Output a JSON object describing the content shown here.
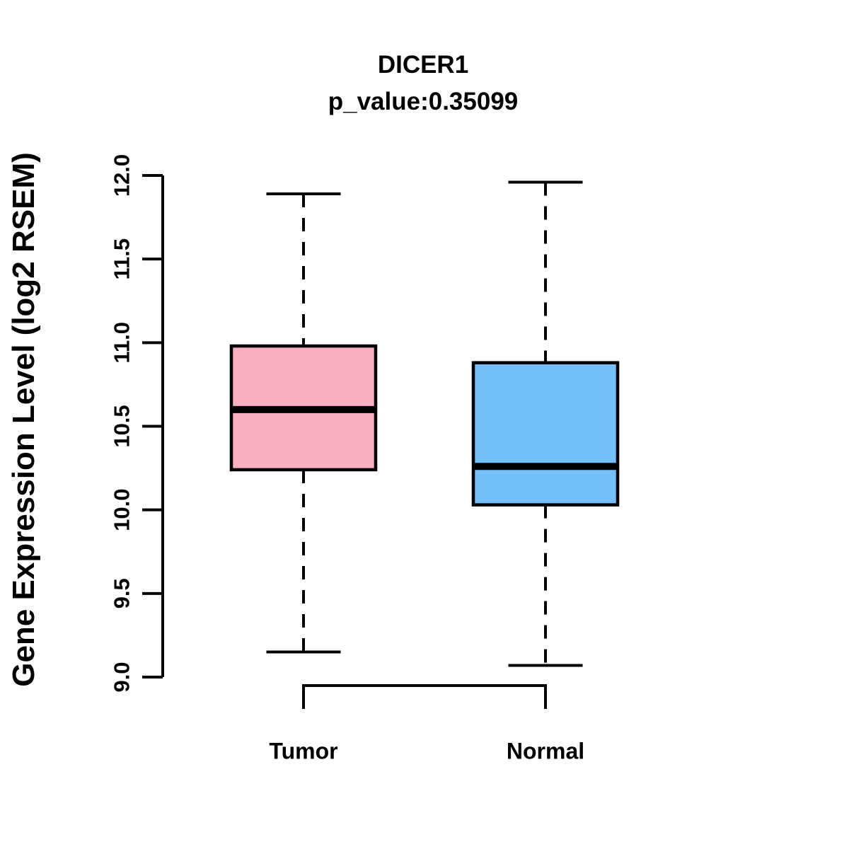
{
  "chart_data": {
    "type": "boxplot",
    "title": "DICER1",
    "subtitle": "p_value:0.35099",
    "ylabel": "Gene Expression Level (log2 RSEM)",
    "xlabel": "",
    "ylim": [
      9.0,
      12.0
    ],
    "yticks": [
      9.0,
      9.5,
      10.0,
      10.5,
      11.0,
      11.5,
      12.0
    ],
    "ytick_labels": [
      "9.0",
      "9.5",
      "10.0",
      "10.5",
      "11.0",
      "11.5",
      "12.0"
    ],
    "grid": false,
    "legend": "none",
    "whisker_style": "dashed",
    "groups": [
      {
        "label": "Tumor",
        "whisker_low": 9.15,
        "q1": 10.24,
        "median": 10.6,
        "q3": 10.98,
        "whisker_high": 11.89,
        "fill_color": "#FCAFC0"
      },
      {
        "label": "Normal",
        "whisker_low": 9.07,
        "q1": 10.03,
        "median": 10.26,
        "q3": 10.88,
        "whisker_high": 11.96,
        "fill_color": "#74BFF7"
      }
    ],
    "colors": {
      "box_border": "#000000",
      "median_line": "#000000",
      "whisker": "#000000",
      "axis": "#000000",
      "background": "#FFFFFF",
      "text": "#000000"
    }
  }
}
